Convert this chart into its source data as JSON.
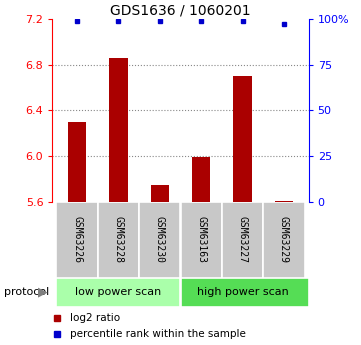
{
  "title": "GDS1636 / 1060201",
  "samples": [
    "GSM63226",
    "GSM63228",
    "GSM63230",
    "GSM63163",
    "GSM63227",
    "GSM63229"
  ],
  "log2_ratio": [
    6.3,
    6.86,
    5.75,
    5.99,
    6.7,
    5.608
  ],
  "percentile_rank": [
    99,
    99,
    99,
    99,
    99,
    97
  ],
  "ylim_left": [
    5.6,
    7.2
  ],
  "ylim_right": [
    0,
    100
  ],
  "yticks_left": [
    5.6,
    6.0,
    6.4,
    6.8,
    7.2
  ],
  "yticks_right": [
    0,
    25,
    50,
    75,
    100
  ],
  "bar_color": "#aa0000",
  "dot_color": "#0000cc",
  "protocol_labels": [
    "low power scan",
    "high power scan"
  ],
  "protocol_colors": [
    "#aaffaa",
    "#55dd55"
  ],
  "gray_box_color": "#c8c8c8",
  "grid_color": "#888888",
  "title_fontsize": 10,
  "tick_fontsize": 8,
  "label_fontsize": 8,
  "legend_fontsize": 7.5
}
